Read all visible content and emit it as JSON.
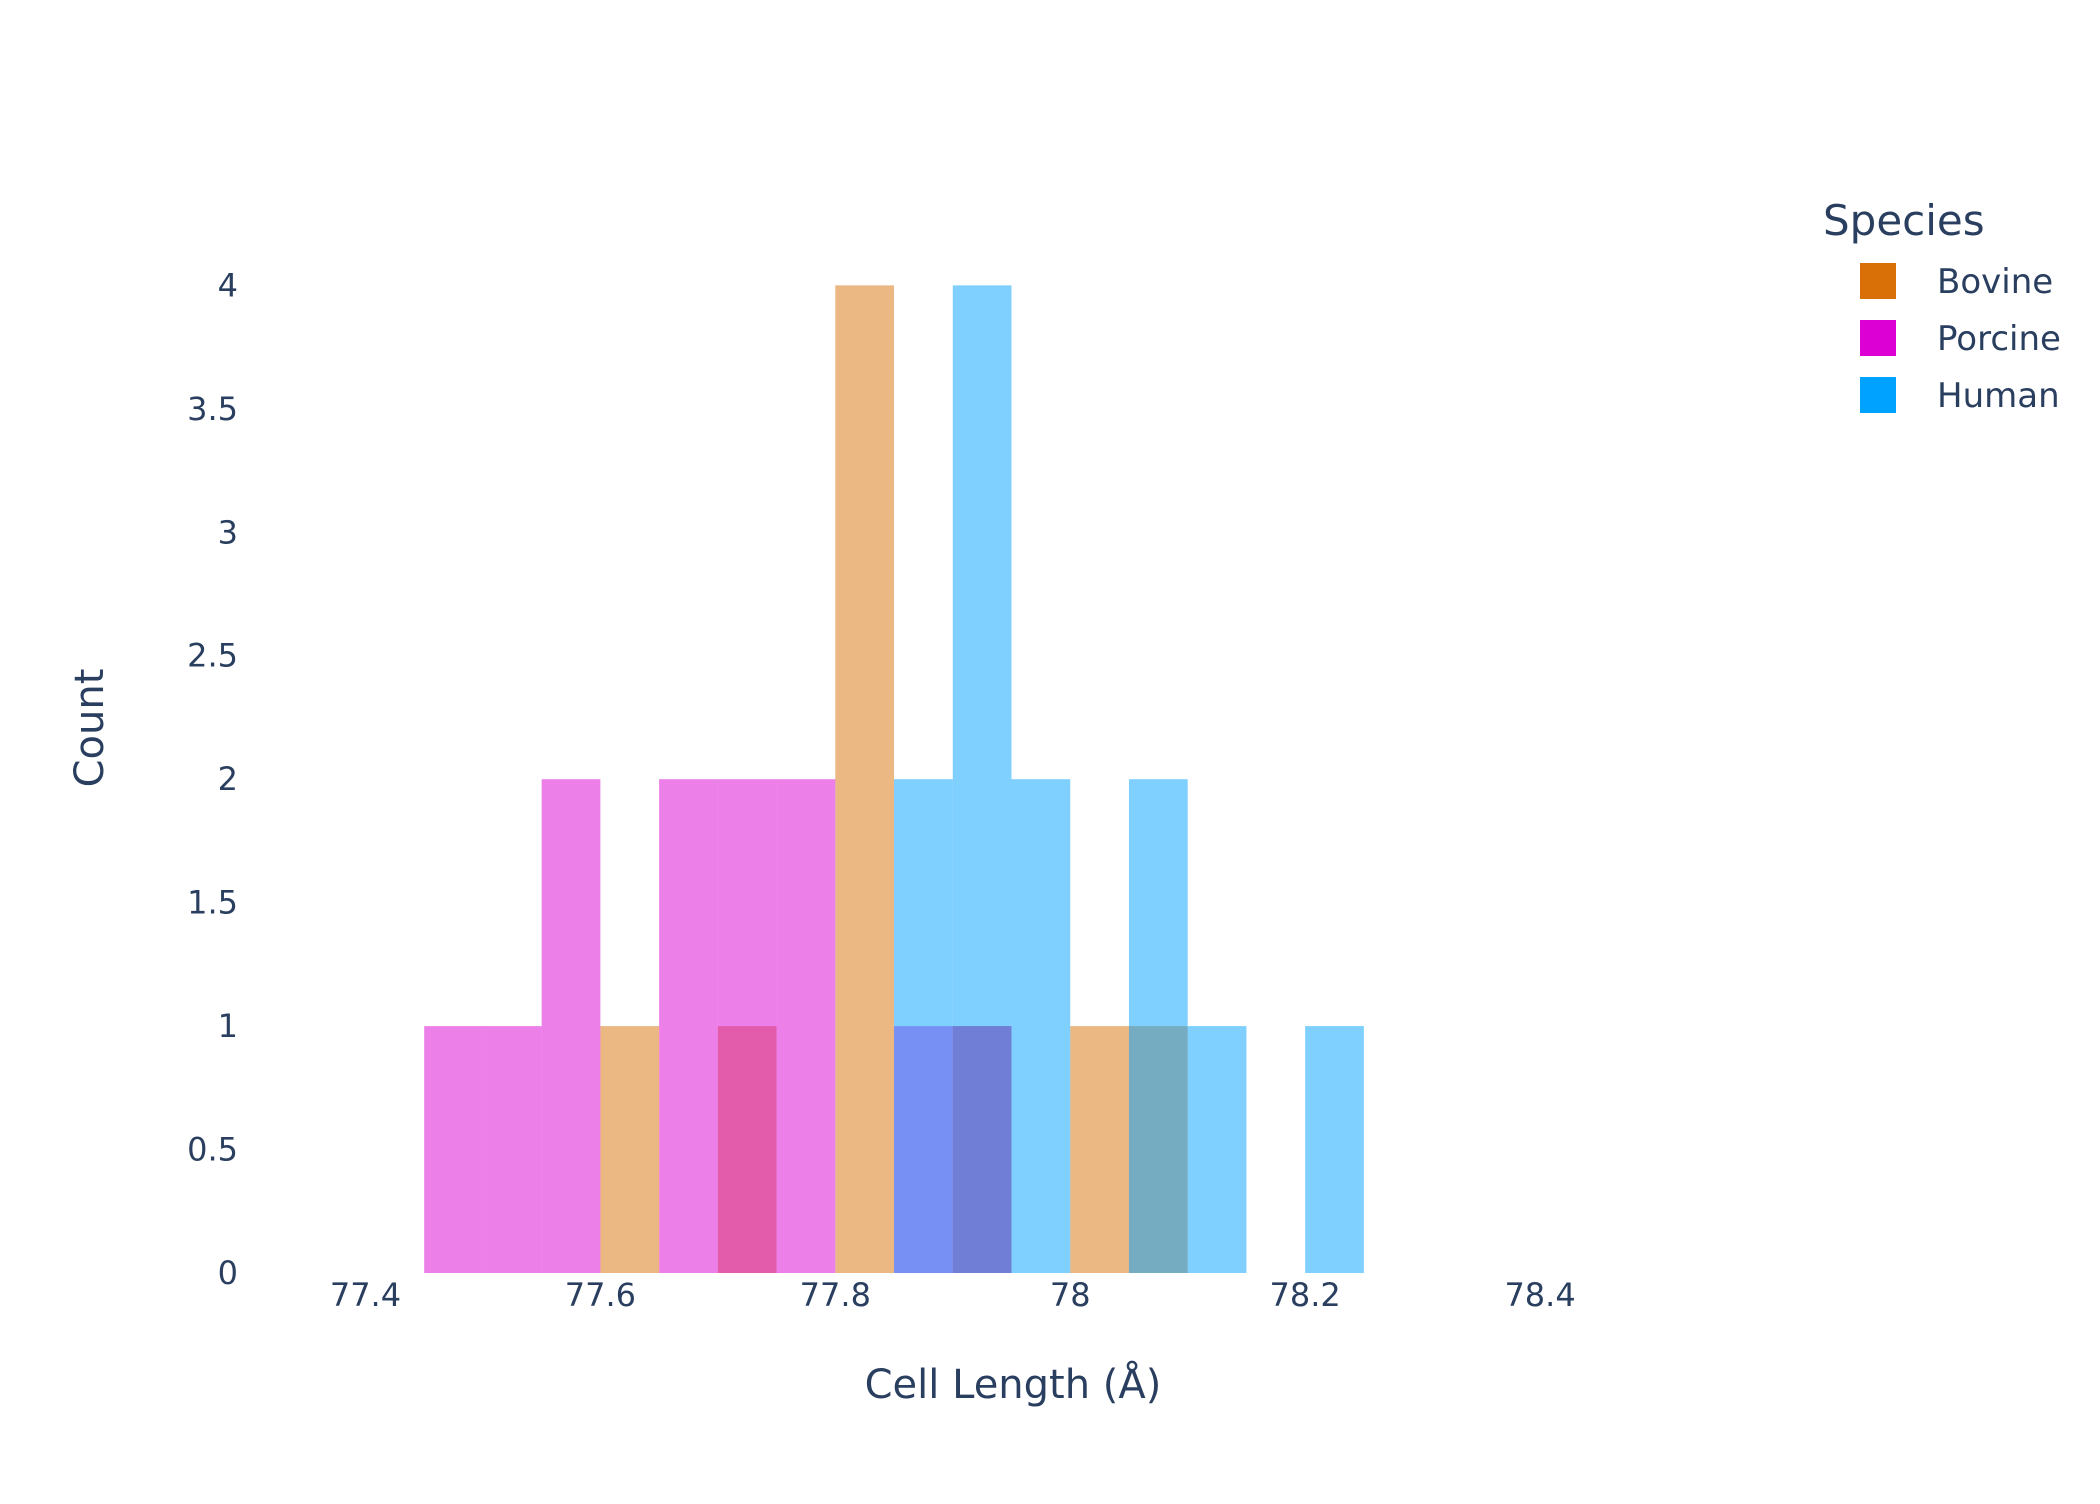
{
  "chart_data": {
    "type": "bar",
    "title": "",
    "xlabel": "Cell Length (Å)",
    "ylabel": "Count",
    "xlim": [
      77.3,
      78.6
    ],
    "ylim": [
      0,
      4.2
    ],
    "bin_width": 0.05,
    "x_ticks": [
      77.4,
      77.6,
      77.8,
      78,
      78.2,
      78.4
    ],
    "x_tick_labels": [
      "77.4",
      "77.6",
      "77.8",
      "78",
      "78.2",
      "78.4"
    ],
    "y_ticks": [
      0,
      0.5,
      1,
      1.5,
      2,
      2.5,
      3,
      3.5,
      4
    ],
    "y_tick_labels": [
      "0",
      "0.5",
      "1",
      "1.5",
      "2",
      "2.5",
      "3",
      "3.5",
      "4"
    ],
    "grid": false,
    "barmode": "overlay",
    "legend": {
      "title": "Species",
      "placement": "top-right"
    },
    "series": [
      {
        "name": "Bovine",
        "color": "#d86f07",
        "opacity": 0.5,
        "bins": [
          {
            "x0": 77.6,
            "x1": 77.65,
            "count": 1
          },
          {
            "x0": 77.7,
            "x1": 77.75,
            "count": 1
          },
          {
            "x0": 77.8,
            "x1": 77.85,
            "count": 4
          },
          {
            "x0": 77.9,
            "x1": 77.95,
            "count": 1
          },
          {
            "x0": 78.0,
            "x1": 78.05,
            "count": 1
          },
          {
            "x0": 78.05,
            "x1": 78.1,
            "count": 1
          }
        ]
      },
      {
        "name": "Porcine",
        "color": "#dc00d4",
        "opacity": 0.5,
        "bins": [
          {
            "x0": 77.45,
            "x1": 77.5,
            "count": 1
          },
          {
            "x0": 77.5,
            "x1": 77.55,
            "count": 1
          },
          {
            "x0": 77.55,
            "x1": 77.6,
            "count": 2
          },
          {
            "x0": 77.65,
            "x1": 77.7,
            "count": 2
          },
          {
            "x0": 77.7,
            "x1": 77.75,
            "count": 2
          },
          {
            "x0": 77.75,
            "x1": 77.8,
            "count": 2
          },
          {
            "x0": 77.85,
            "x1": 77.9,
            "count": 1
          },
          {
            "x0": 77.9,
            "x1": 77.95,
            "count": 1
          }
        ]
      },
      {
        "name": "Human",
        "color": "#00a2ff",
        "opacity": 0.5,
        "bins": [
          {
            "x0": 77.85,
            "x1": 77.9,
            "count": 2
          },
          {
            "x0": 77.9,
            "x1": 77.95,
            "count": 4
          },
          {
            "x0": 77.95,
            "x1": 78.0,
            "count": 2
          },
          {
            "x0": 78.05,
            "x1": 78.1,
            "count": 2
          },
          {
            "x0": 78.1,
            "x1": 78.15,
            "count": 1
          },
          {
            "x0": 78.2,
            "x1": 78.25,
            "count": 1
          }
        ]
      }
    ]
  }
}
